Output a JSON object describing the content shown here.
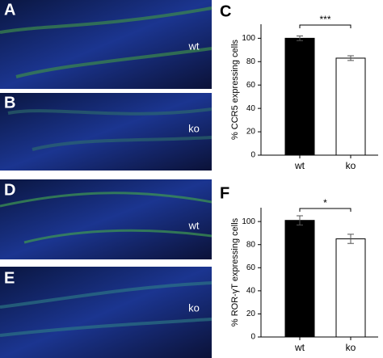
{
  "images": [
    {
      "label": "A",
      "tag": "wt"
    },
    {
      "label": "B",
      "tag": "ko"
    },
    {
      "label": "D",
      "tag": "wt"
    },
    {
      "label": "E",
      "tag": "ko"
    }
  ],
  "chart_data": [
    {
      "type": "bar",
      "panel": "C",
      "y_label": "% CCR5 expressing cells",
      "categories": [
        "wt",
        "ko"
      ],
      "values": [
        100,
        83
      ],
      "errors": [
        2,
        2
      ],
      "colors": [
        "#000000",
        "#ffffff"
      ],
      "significance": "***",
      "ylim": [
        0,
        112
      ],
      "yticks": [
        0,
        20,
        40,
        60,
        80,
        100
      ]
    },
    {
      "type": "bar",
      "panel": "F",
      "y_label": "% ROR-γT expressing cells",
      "categories": [
        "wt",
        "ko"
      ],
      "values": [
        101,
        85
      ],
      "errors": [
        4,
        4
      ],
      "colors": [
        "#000000",
        "#ffffff"
      ],
      "significance": "*",
      "ylim": [
        0,
        112
      ],
      "yticks": [
        0,
        20,
        40,
        60,
        80,
        100
      ]
    }
  ]
}
